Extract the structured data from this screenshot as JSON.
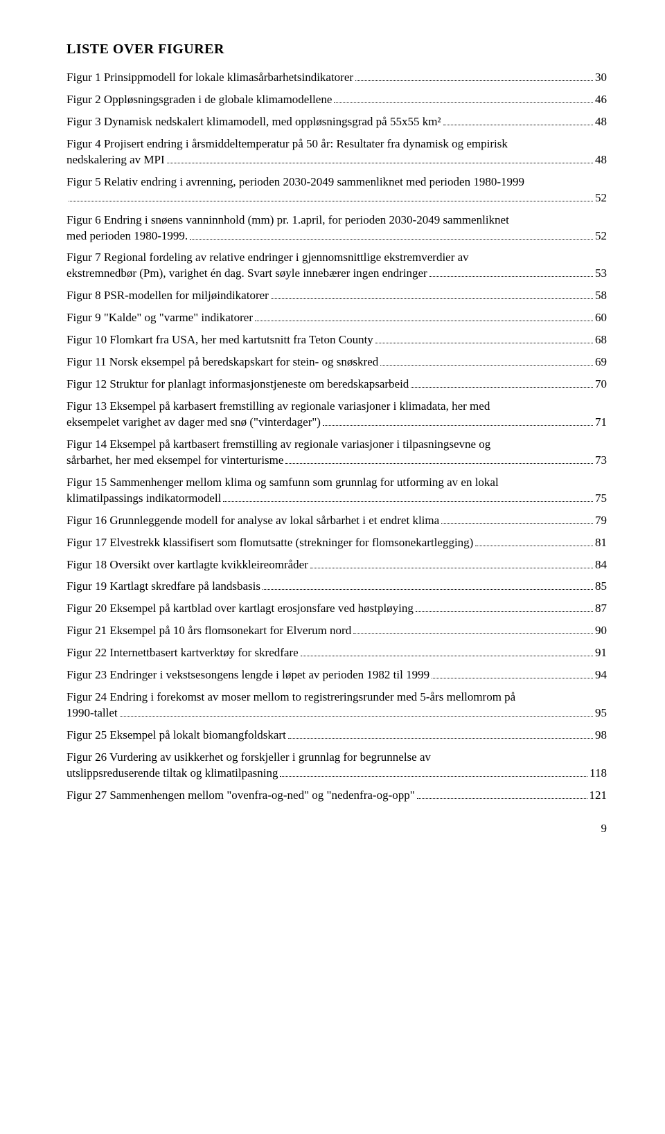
{
  "title": "LISTE OVER FIGURER",
  "footer_page_number": "9",
  "entries": [
    {
      "pre": "",
      "tail": "Figur 1 Prinsippmodell for lokale klimasårbarhetsindikatorer",
      "page": "30"
    },
    {
      "pre": "",
      "tail": "Figur 2  Oppløsningsgraden i de globale klimamodellene",
      "page": "46"
    },
    {
      "pre": "",
      "tail": "Figur 3  Dynamisk nedskalert klimamodell, med oppløsningsgrad på 55x55 km²",
      "page": "48"
    },
    {
      "pre": "Figur 4  Projisert endring i årsmiddeltemperatur på 50 år: Resultater fra dynamisk og empirisk",
      "tail": "nedskalering av MPI",
      "page": "48"
    },
    {
      "pre": "Figur 5  Relativ endring i avrenning, perioden 2030-2049 sammenliknet med perioden 1980-1999",
      "tail": "",
      "page": "52"
    },
    {
      "pre": "Figur 6  Endring i snøens vanninnhold (mm) pr. 1.april, for perioden 2030-2049 sammenliknet",
      "tail": "med perioden 1980-1999.",
      "page": "52"
    },
    {
      "pre": "Figur 7  Regional fordeling av relative endringer i gjennomsnittlige ekstremverdier av",
      "tail": "ekstremnedbør (Pm), varighet én dag. Svart søyle innebærer ingen endringer",
      "page": "53"
    },
    {
      "pre": "",
      "tail": "Figur 8  PSR-modellen for miljøindikatorer",
      "page": "58"
    },
    {
      "pre": "",
      "tail": "Figur 9  \"Kalde\" og \"varme\" indikatorer",
      "page": "60"
    },
    {
      "pre": "",
      "tail": "Figur 10  Flomkart fra USA, her med kartutsnitt fra Teton County",
      "page": "68"
    },
    {
      "pre": "",
      "tail": "Figur 11  Norsk eksempel på beredskapskart for stein- og snøskred",
      "page": "69"
    },
    {
      "pre": "",
      "tail": "Figur 12  Struktur for planlagt informasjonstjeneste om beredskapsarbeid",
      "page": "70"
    },
    {
      "pre": "Figur 13 Eksempel på karbasert fremstilling av regionale variasjoner i klimadata, her med",
      "tail": "eksempelet varighet av dager med snø (\"vinterdager\")",
      "page": "71"
    },
    {
      "pre": "Figur 14 Eksempel på kartbasert fremstilling av regionale variasjoner i tilpasningsevne og",
      "tail": "sårbarhet, her med eksempel for vinterturisme",
      "page": "73"
    },
    {
      "pre": "Figur 15 Sammenhenger mellom klima og samfunn som grunnlag for utforming av en lokal",
      "tail": "klimatilpassings indikatormodell",
      "page": "75"
    },
    {
      "pre": "",
      "tail": "Figur 16  Grunnleggende modell for analyse av lokal sårbarhet i et endret klima",
      "page": "79"
    },
    {
      "pre": "",
      "tail": "Figur 17  Elvestrekk klassifisert som flomutsatte (strekninger for flomsonekartlegging)",
      "page": "81"
    },
    {
      "pre": "",
      "tail": "Figur 18  Oversikt over kartlagte kvikkleireområder",
      "page": "84"
    },
    {
      "pre": "",
      "tail": "Figur 19  Kartlagt skredfare på landsbasis",
      "page": "85"
    },
    {
      "pre": "",
      "tail": "Figur 20  Eksempel på kartblad over kartlagt erosjonsfare ved høstpløying",
      "page": "87"
    },
    {
      "pre": "",
      "tail": "Figur 21  Eksempel på 10 års flomsonekart for Elverum nord",
      "page": "90"
    },
    {
      "pre": "",
      "tail": "Figur 22  Internettbasert kartverktøy for skredfare",
      "page": "91"
    },
    {
      "pre": "",
      "tail": "Figur 23  Endringer i vekstsesongens lengde i løpet av perioden 1982 til 1999",
      "page": "94"
    },
    {
      "pre": "Figur 24 Endring i forekomst av moser mellom to registreringsrunder med 5-års mellomrom på",
      "tail": "1990-tallet",
      "page": "95"
    },
    {
      "pre": "",
      "tail": "Figur 25  Eksempel på lokalt biomangfoldskart",
      "page": "98"
    },
    {
      "pre": "Figur 26  Vurdering av usikkerhet og forskjeller i grunnlag for begrunnelse av",
      "tail": "utslippsreduserende tiltak og klimatilpasning",
      "page": "118"
    },
    {
      "pre": "",
      "tail": "Figur 27  Sammenhengen mellom \"ovenfra-og-ned\" og \"nedenfra-og-opp\"",
      "page": "121"
    }
  ]
}
